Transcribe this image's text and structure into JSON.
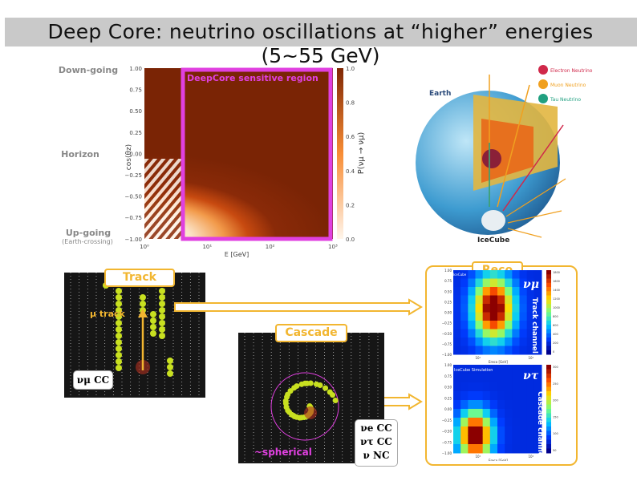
{
  "slide": {
    "title_line1": "Deep Core: neutrino oscillations at “higher” energies",
    "title_line2": "(5~55 GeV)"
  },
  "oscillogram": {
    "side_labels": {
      "down": "Down-going",
      "horizon": "Horizon",
      "up": "Up-going",
      "up_sub": "(Earth-crossing)"
    },
    "ylabel": "cos(θz)",
    "xlabel": "E [GeV]",
    "yticks": [
      "1.00",
      "0.75",
      "0.50",
      "0.25",
      "0.00",
      "−0.25",
      "−0.50",
      "−0.75",
      "−1.00"
    ],
    "xticks": [
      "10⁰",
      "10¹",
      "10²",
      "10³"
    ],
    "colorbar_label": "P(νμ → νμ)",
    "colorbar_ticks": [
      "1.0",
      "0.8",
      "0.6",
      "0.4",
      "0.2",
      "0.0"
    ],
    "region_label": "DeepCore sensitive region",
    "region_color": "#e040e0"
  },
  "globe": {
    "earth_label": "Earth",
    "detector_label": "IceCube",
    "legend": [
      "Electron Neutrino",
      "Muon Neutrino",
      "Tau Neutrino"
    ],
    "legend_colors": [
      "#d0284a",
      "#f0a020",
      "#20a080"
    ]
  },
  "track": {
    "label": "Track",
    "arrow_label": "μ track",
    "interaction": "νμ CC"
  },
  "cascade": {
    "label": "Cascade",
    "shape_label": "~spherical",
    "interactions": [
      "νe CC",
      "ντ CC",
      "ν NC"
    ]
  },
  "reco": {
    "label": "Reco",
    "top": {
      "flavor": "νμ",
      "channel": "Track channel",
      "tag": "IceCube",
      "xlabel": "Ereco [GeV]",
      "yticks": [
        "1.00",
        "0.75",
        "0.50",
        "0.25",
        "0.00",
        "−0.25",
        "−0.50",
        "−0.75",
        "−1.00"
      ],
      "xticks": [
        "10¹",
        "10²"
      ],
      "cb_ticks": [
        "1800",
        "1600",
        "1400",
        "1200",
        "1000",
        "800",
        "600",
        "400",
        "200",
        "0"
      ]
    },
    "bottom": {
      "flavor": "ντ",
      "channel": "Cascade channel",
      "tag": "IceCube Simulation",
      "xlabel": "Ereco [GeV]",
      "yticks": [
        "1.00",
        "0.75",
        "0.50",
        "0.25",
        "0.00",
        "−0.25",
        "−0.50",
        "−0.75",
        "−1.00"
      ],
      "xticks": [
        "10¹",
        "10²"
      ],
      "cb_ticks": [
        "300",
        "250",
        "200",
        "150",
        "100",
        "50"
      ]
    }
  },
  "colors": {
    "accent": "#f2b630",
    "magenta": "#e040e0"
  }
}
